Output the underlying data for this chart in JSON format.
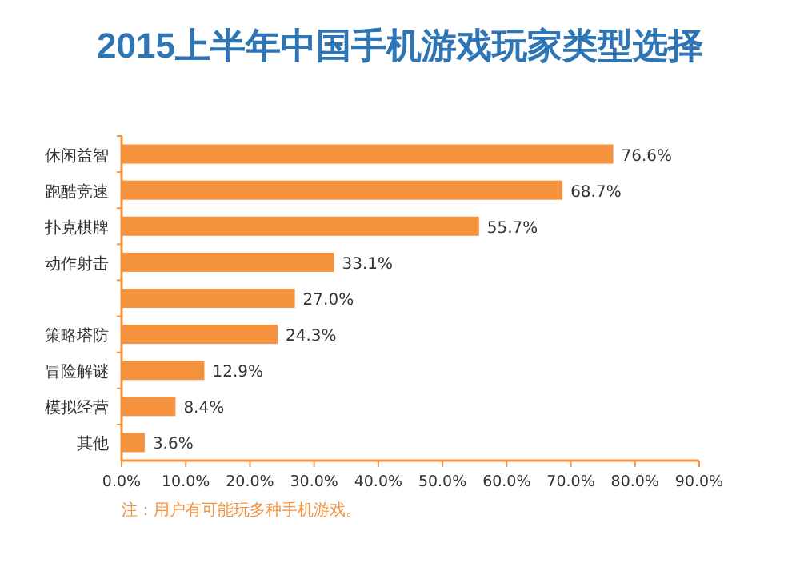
{
  "chart_data": {
    "type": "bar",
    "orientation": "horizontal",
    "title": "2015上半年中国手机游戏玩家类型选择",
    "categories": [
      "休闲益智",
      "跑酷竞速",
      "扑克棋牌",
      "动作射击",
      null,
      "策略塔防",
      "冒险解谜",
      "模拟经营",
      "其他"
    ],
    "values": [
      76.6,
      68.7,
      55.7,
      33.1,
      27.0,
      24.3,
      12.9,
      8.4,
      3.6
    ],
    "value_labels": [
      "76.6%",
      "68.7%",
      "55.7%",
      "33.1%",
      "27.0%",
      "24.3%",
      "12.9%",
      "8.4%",
      "3.6%"
    ],
    "color": "#f5923e",
    "xlim": [
      0,
      90
    ],
    "xticks": [
      {
        "value": 0,
        "label": "0.0%"
      },
      {
        "value": 10,
        "label": "10.0%"
      },
      {
        "value": 20,
        "label": "20.0%"
      },
      {
        "value": 30,
        "label": "30.0%"
      },
      {
        "value": 40,
        "label": "40.0%"
      },
      {
        "value": 50,
        "label": "50.0%"
      },
      {
        "value": 60,
        "label": "60.0%"
      },
      {
        "value": 70,
        "label": "70.0%"
      },
      {
        "value": 80,
        "label": "80.0%"
      },
      {
        "value": 90,
        "label": "90.0%"
      }
    ],
    "annotations": [
      "注：用户有可能玩多种手机游戏。"
    ]
  }
}
